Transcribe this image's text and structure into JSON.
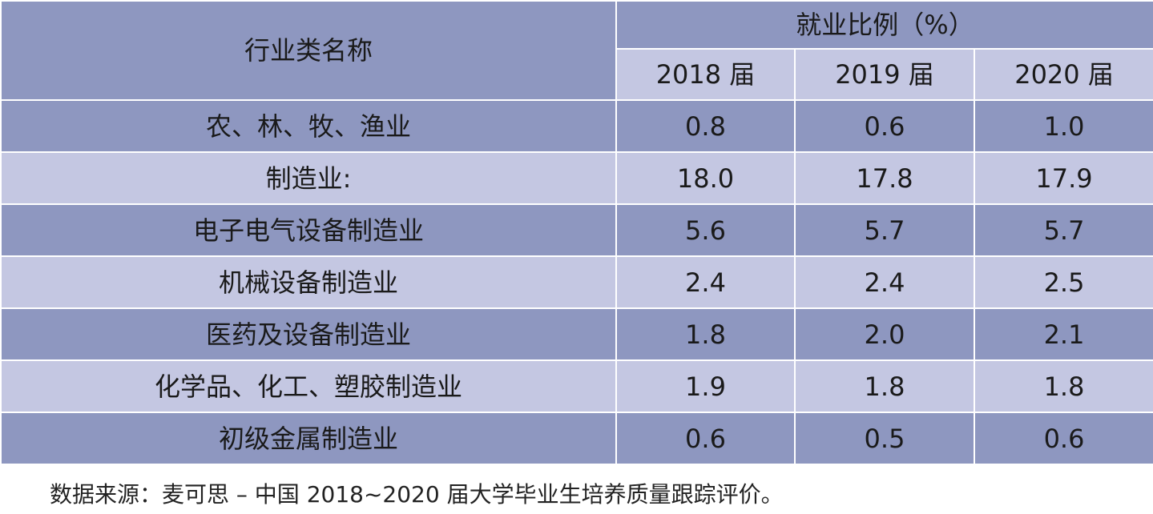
{
  "table": {
    "header": {
      "name_col": "行业类名称",
      "ratio_group": "就业比例（%）",
      "years": [
        "2018 届",
        "2019 届",
        "2020 届"
      ]
    },
    "rows": [
      {
        "name": "农、林、牧、渔业",
        "v2018": "0.8",
        "v2019": "0.6",
        "v2020": "1.0"
      },
      {
        "name": "制造业:",
        "v2018": "18.0",
        "v2019": "17.8",
        "v2020": "17.9"
      },
      {
        "name": "电子电气设备制造业",
        "v2018": "5.6",
        "v2019": "5.7",
        "v2020": "5.7"
      },
      {
        "name": "机械设备制造业",
        "v2018": "2.4",
        "v2019": "2.4",
        "v2020": "2.5"
      },
      {
        "name": "医药及设备制造业",
        "v2018": "1.8",
        "v2019": "2.0",
        "v2020": "2.1"
      },
      {
        "name": "化学品、化工、塑胶制造业",
        "v2018": "1.9",
        "v2019": "1.8",
        "v2020": "1.8"
      },
      {
        "name": "初级金属制造业",
        "v2018": "0.6",
        "v2019": "0.5",
        "v2020": "0.6"
      }
    ]
  },
  "source_note": "数据来源：麦可思 – 中国 2018~2020 届大学毕业生培养质量跟踪评价。",
  "colors": {
    "dark_row": "#8e97c0",
    "light_row": "#c4c7e2",
    "grid": "#ffffff"
  }
}
